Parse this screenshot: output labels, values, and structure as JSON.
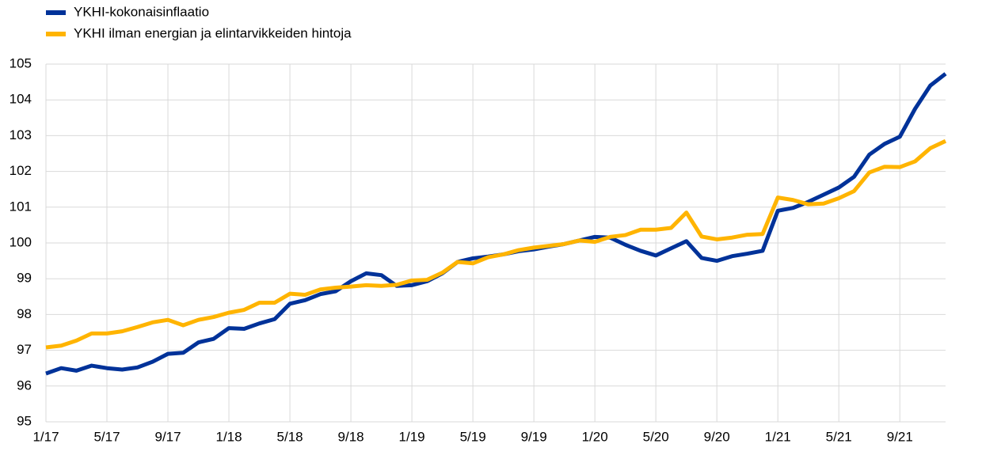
{
  "chart_data": {
    "type": "line",
    "categories": [
      "1/17",
      null,
      null,
      null,
      "5/17",
      null,
      null,
      null,
      "9/17",
      null,
      null,
      null,
      "1/18",
      null,
      null,
      null,
      "5/18",
      null,
      null,
      null,
      "9/18",
      null,
      null,
      null,
      "1/19",
      null,
      null,
      null,
      "5/19",
      null,
      null,
      null,
      "9/19",
      null,
      null,
      null,
      "1/20",
      null,
      null,
      null,
      "5/20",
      null,
      null,
      null,
      "9/20",
      null,
      null,
      null,
      "1/21",
      null,
      null,
      null,
      "5/21",
      null,
      null,
      null,
      "9/21",
      null,
      null,
      null
    ],
    "series": [
      {
        "name": "YKHI-kokonaisinflaatio",
        "color": "#003299",
        "values": [
          96.35,
          96.5,
          96.43,
          96.57,
          96.5,
          96.46,
          96.52,
          96.68,
          96.9,
          96.93,
          97.22,
          97.32,
          97.62,
          97.6,
          97.75,
          97.87,
          98.3,
          98.4,
          98.57,
          98.65,
          98.93,
          99.15,
          99.1,
          98.8,
          98.82,
          98.93,
          99.15,
          99.47,
          99.57,
          99.62,
          99.68,
          99.77,
          99.82,
          99.9,
          99.97,
          100.07,
          100.17,
          100.15,
          99.95,
          99.78,
          99.65,
          99.85,
          100.05,
          99.58,
          99.5,
          99.63,
          99.7,
          99.78,
          100.9,
          100.98,
          101.15,
          101.35,
          101.55,
          101.85,
          102.47,
          102.77,
          102.97,
          103.75,
          104.4,
          104.73
        ]
      },
      {
        "name": "YKHI ilman energian ja elintarvikkeiden hintoja",
        "color": "#ffb400",
        "values": [
          97.08,
          97.13,
          97.27,
          97.47,
          97.47,
          97.53,
          97.65,
          97.78,
          97.85,
          97.7,
          97.85,
          97.93,
          98.05,
          98.13,
          98.33,
          98.33,
          98.58,
          98.55,
          98.7,
          98.75,
          98.78,
          98.82,
          98.8,
          98.83,
          98.95,
          98.97,
          99.17,
          99.47,
          99.43,
          99.6,
          99.68,
          99.8,
          99.87,
          99.92,
          99.97,
          100.07,
          100.03,
          100.17,
          100.22,
          100.37,
          100.37,
          100.42,
          100.85,
          100.18,
          100.1,
          100.15,
          100.23,
          100.25,
          101.27,
          101.2,
          101.08,
          101.1,
          101.25,
          101.45,
          101.97,
          102.13,
          102.12,
          102.28,
          102.65,
          102.85
        ]
      }
    ],
    "ylim": [
      95,
      105
    ],
    "yticks": [
      95,
      96,
      97,
      98,
      99,
      100,
      101,
      102,
      103,
      104,
      105
    ],
    "grid": true
  }
}
